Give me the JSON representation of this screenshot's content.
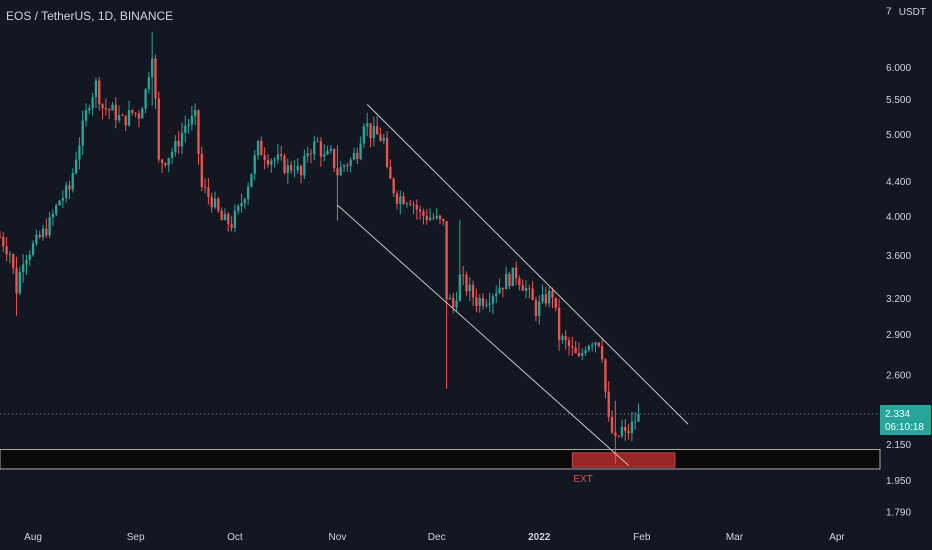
{
  "header": {
    "symbol": "EOS / TetherUS, 1D, BINANCE",
    "unit": "USDT"
  },
  "colors": {
    "background": "#131722",
    "up": "#26a69a",
    "down": "#ef5350",
    "text": "#d1d4dc",
    "channel": "#c8c8c8",
    "zone": "#0a0a0a",
    "ext_fill": "#b22a2a",
    "ext_border": "#e05555",
    "price_label": "#26a69a",
    "price_line": "#8a8e99"
  },
  "chart_data": {
    "type": "candlestick",
    "scale": "log",
    "ylim": [
      1.74,
      7.2
    ],
    "y_ticks": [
      "7",
      "6.000",
      "5.500",
      "5.000",
      "4.400",
      "4.000",
      "3.600",
      "3.200",
      "2.900",
      "2.600",
      "2.150",
      "1.950",
      "1.790"
    ],
    "x_tick_labels": [
      "Aug",
      "Sep",
      "Oct",
      "Nov",
      "Dec",
      "2022",
      "Feb",
      "Mar",
      "Apr"
    ],
    "x_range": [
      "2021-07-22",
      "2022-04-14"
    ],
    "x_ticks": [
      "2021-08-01",
      "2021-09-01",
      "2021-10-01",
      "2021-11-01",
      "2021-12-01",
      "2022-01-01",
      "2022-02-01",
      "2022-03-01",
      "2022-04-01"
    ],
    "price_points": [
      [
        "2021-07-22",
        3.78
      ],
      [
        "2021-07-25",
        3.62
      ],
      [
        "2021-07-27",
        3.28
      ],
      [
        "2021-07-29",
        3.58
      ],
      [
        "2021-08-02",
        3.72
      ],
      [
        "2021-08-06",
        3.92
      ],
      [
        "2021-08-09",
        4.18
      ],
      [
        "2021-08-12",
        4.3
      ],
      [
        "2021-08-14",
        4.72
      ],
      [
        "2021-08-16",
        5.08
      ],
      [
        "2021-08-18",
        5.48
      ],
      [
        "2021-08-20",
        5.72
      ],
      [
        "2021-08-22",
        5.38
      ],
      [
        "2021-08-25",
        5.32
      ],
      [
        "2021-08-28",
        5.18
      ],
      [
        "2021-08-31",
        5.3
      ],
      [
        "2021-09-02",
        5.28
      ],
      [
        "2021-09-04",
        5.62
      ],
      [
        "2021-09-06",
        6.28
      ],
      [
        "2021-09-07",
        5.45
      ],
      [
        "2021-09-08",
        4.62
      ],
      [
        "2021-09-10",
        4.68
      ],
      [
        "2021-09-13",
        4.82
      ],
      [
        "2021-09-16",
        5.12
      ],
      [
        "2021-09-19",
        5.22
      ],
      [
        "2021-09-21",
        4.32
      ],
      [
        "2021-09-24",
        4.18
      ],
      [
        "2021-09-27",
        3.95
      ],
      [
        "2021-09-30",
        3.92
      ],
      [
        "2021-10-02",
        4.05
      ],
      [
        "2021-10-05",
        4.38
      ],
      [
        "2021-10-08",
        4.82
      ],
      [
        "2021-10-11",
        4.7
      ],
      [
        "2021-10-14",
        4.65
      ],
      [
        "2021-10-17",
        4.55
      ],
      [
        "2021-10-19",
        4.6
      ],
      [
        "2021-10-21",
        4.45
      ],
      [
        "2021-10-23",
        4.78
      ],
      [
        "2021-10-26",
        4.88
      ],
      [
        "2021-10-28",
        4.68
      ],
      [
        "2021-10-30",
        4.72
      ],
      [
        "2021-11-01",
        4.5
      ],
      [
        "2021-11-03",
        4.6
      ],
      [
        "2021-11-05",
        4.65
      ],
      [
        "2021-11-07",
        4.78
      ],
      [
        "2021-11-09",
        5.2
      ],
      [
        "2021-11-11",
        5.02
      ],
      [
        "2021-11-13",
        4.98
      ],
      [
        "2021-11-15",
        4.92
      ],
      [
        "2021-11-16",
        4.48
      ],
      [
        "2021-11-19",
        4.22
      ],
      [
        "2021-11-23",
        4.2
      ],
      [
        "2021-11-26",
        4.02
      ],
      [
        "2021-11-30",
        3.98
      ],
      [
        "2021-12-03",
        3.9
      ],
      [
        "2021-12-04",
        3.22
      ],
      [
        "2021-12-06",
        3.12
      ],
      [
        "2021-12-08",
        3.38
      ],
      [
        "2021-12-10",
        3.3
      ],
      [
        "2021-12-13",
        3.18
      ],
      [
        "2021-12-16",
        3.2
      ],
      [
        "2021-12-19",
        3.28
      ],
      [
        "2021-12-22",
        3.36
      ],
      [
        "2021-12-25",
        3.42
      ],
      [
        "2021-12-28",
        3.28
      ],
      [
        "2021-12-31",
        3.1
      ],
      [
        "2022-01-03",
        3.2
      ],
      [
        "2022-01-05",
        3.24
      ],
      [
        "2022-01-07",
        2.88
      ],
      [
        "2022-01-10",
        2.8
      ],
      [
        "2022-01-13",
        2.7
      ],
      [
        "2022-01-15",
        2.82
      ],
      [
        "2022-01-17",
        2.86
      ],
      [
        "2022-01-19",
        2.85
      ],
      [
        "2022-01-20",
        2.76
      ],
      [
        "2022-01-21",
        2.48
      ],
      [
        "2022-01-22",
        2.28
      ],
      [
        "2022-01-24",
        2.16
      ],
      [
        "2022-01-26",
        2.24
      ],
      [
        "2022-01-27",
        2.2
      ],
      [
        "2022-01-29",
        2.26
      ],
      [
        "2022-01-31",
        2.334
      ]
    ],
    "wicks": [
      {
        "date": "2021-09-06",
        "high": 6.6,
        "low": 5.4
      },
      {
        "date": "2021-07-27",
        "high": 3.58,
        "low": 3.05
      },
      {
        "date": "2021-11-01",
        "high": 4.85,
        "low": 3.95
      },
      {
        "date": "2021-12-04",
        "high": 3.62,
        "low": 2.5
      },
      {
        "date": "2021-12-08",
        "high": 3.96,
        "low": 3.3
      },
      {
        "date": "2022-01-24",
        "high": 2.42,
        "low": 2.04
      }
    ],
    "annotations": {
      "current_price": "2.334",
      "countdown": "06:10:18",
      "channel_upper": [
        [
          "2021-11-10",
          5.42
        ],
        [
          "2022-02-15",
          2.27
        ]
      ],
      "channel_lower": [
        [
          "2021-11-01",
          4.12
        ],
        [
          "2022-01-28",
          2.03
        ]
      ],
      "support_zone": [
        2.12,
        2.01
      ],
      "ext_zone": {
        "label": "EXT",
        "from": "2022-01-11",
        "to": "2022-02-11",
        "top": 2.1,
        "bottom": 2.02
      }
    }
  }
}
